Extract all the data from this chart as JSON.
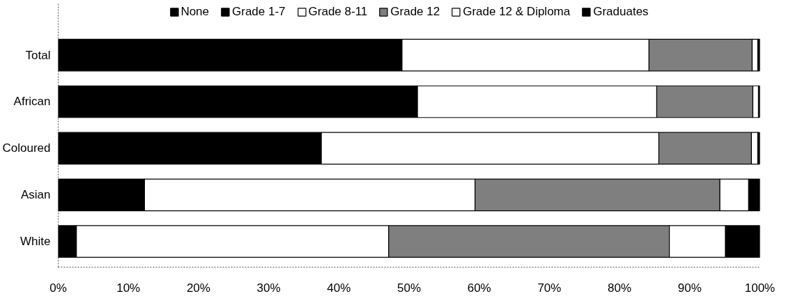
{
  "chart_data": {
    "type": "bar",
    "orientation": "horizontal",
    "stacked": true,
    "categories": [
      "Total",
      "African",
      "Coloured",
      "Asian",
      "White"
    ],
    "series": [
      {
        "name": "None",
        "color": "#000000",
        "values": [
          null,
          null,
          null,
          null,
          null
        ]
      },
      {
        "name": "Grade 1-7",
        "color": "#000000",
        "values": [
          49.0,
          51.2,
          37.5,
          12.3,
          2.6
        ]
      },
      {
        "name": "Grade 8-11",
        "color": "#ffffff",
        "values": [
          35.2,
          34.1,
          48.1,
          47.1,
          44.5
        ]
      },
      {
        "name": "Grade 12",
        "color": "#7f7f7f",
        "values": [
          14.7,
          13.7,
          13.2,
          34.9,
          40.0
        ]
      },
      {
        "name": "Grade 12 & Diploma",
        "color": "#ffffff",
        "values": [
          0.8,
          0.8,
          0.9,
          4.1,
          8.0
        ]
      },
      {
        "name": "Graduates",
        "color": "#000000",
        "values": [
          0.3,
          0.2,
          0.3,
          1.6,
          4.9
        ]
      }
    ],
    "xlim": [
      0,
      100
    ],
    "xticks": [
      {
        "value": 0,
        "label": "0%"
      },
      {
        "value": 10,
        "label": "10%"
      },
      {
        "value": 20,
        "label": "20%"
      },
      {
        "value": 30,
        "label": "30%"
      },
      {
        "value": 40,
        "label": "40%"
      },
      {
        "value": 50,
        "label": "50%"
      },
      {
        "value": 60,
        "label": "60%"
      },
      {
        "value": 70,
        "label": "70%"
      },
      {
        "value": 80,
        "label": "80%"
      },
      {
        "value": 90,
        "label": "90%"
      },
      {
        "value": 100,
        "label": "100%"
      }
    ],
    "legend": "top",
    "grid": false
  }
}
